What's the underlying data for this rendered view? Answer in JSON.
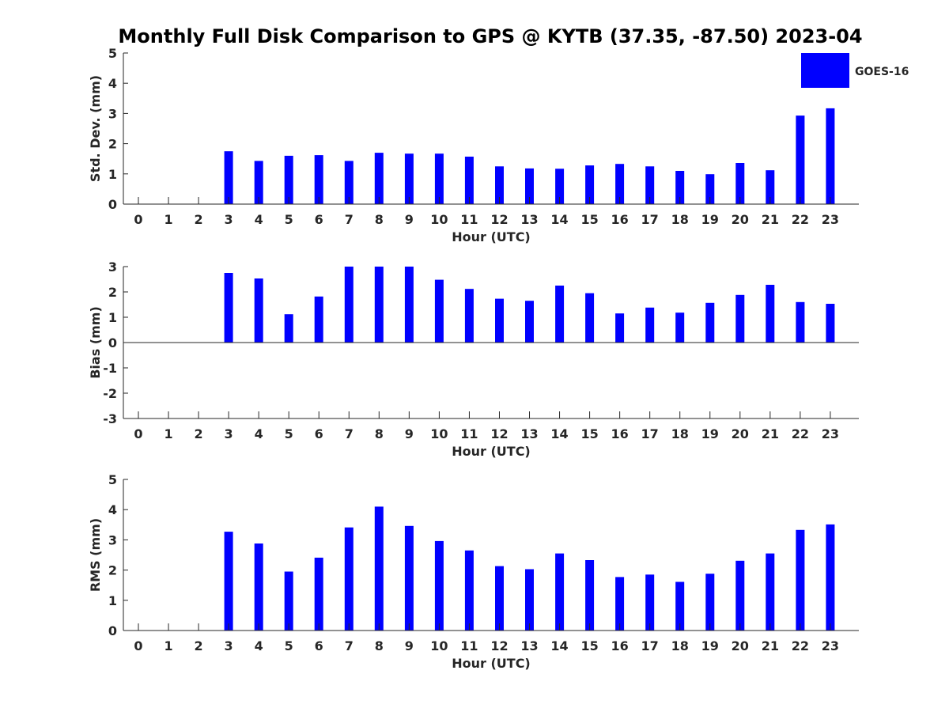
{
  "title": "Monthly Full Disk Comparison to GPS @ KYTB (37.35, -87.50) 2023-04",
  "legend": {
    "label": "GOES-16",
    "placement": "top-right"
  },
  "colors": {
    "bar": "#0000ff",
    "axis": "#262626"
  },
  "chart_data": [
    {
      "type": "bar",
      "categories": [
        "0",
        "1",
        "2",
        "3",
        "4",
        "5",
        "6",
        "7",
        "8",
        "9",
        "10",
        "11",
        "12",
        "13",
        "14",
        "15",
        "16",
        "17",
        "18",
        "19",
        "20",
        "21",
        "22",
        "23"
      ],
      "series": [
        {
          "name": "GOES-16",
          "values": [
            null,
            null,
            null,
            1.75,
            1.43,
            1.6,
            1.62,
            1.43,
            1.7,
            1.67,
            1.67,
            1.57,
            1.25,
            1.18,
            1.17,
            1.28,
            1.33,
            1.25,
            1.1,
            0.99,
            1.36,
            1.12,
            2.93,
            3.17
          ]
        }
      ],
      "xlabel": "Hour (UTC)",
      "ylabel": "Std. Dev. (mm)",
      "ylim": [
        0,
        5
      ],
      "yticks": [
        "0",
        "1",
        "2",
        "3",
        "4",
        "5"
      ],
      "grid": false
    },
    {
      "type": "bar",
      "categories": [
        "0",
        "1",
        "2",
        "3",
        "4",
        "5",
        "6",
        "7",
        "8",
        "9",
        "10",
        "11",
        "12",
        "13",
        "14",
        "15",
        "16",
        "17",
        "18",
        "19",
        "20",
        "21",
        "22",
        "23"
      ],
      "series": [
        {
          "name": "GOES-16",
          "values": [
            null,
            null,
            null,
            2.75,
            2.53,
            1.12,
            1.82,
            3.0,
            3.0,
            3.0,
            2.48,
            2.12,
            1.73,
            1.65,
            2.25,
            1.95,
            1.15,
            1.38,
            1.18,
            1.57,
            1.88,
            2.28,
            1.6,
            1.53
          ]
        }
      ],
      "xlabel": "Hour (UTC)",
      "ylabel": "Bias (mm)",
      "ylim": [
        -3,
        3
      ],
      "yticks": [
        "-3",
        "-2",
        "-1",
        "0",
        "1",
        "2",
        "3"
      ],
      "grid": false
    },
    {
      "type": "bar",
      "categories": [
        "0",
        "1",
        "2",
        "3",
        "4",
        "5",
        "6",
        "7",
        "8",
        "9",
        "10",
        "11",
        "12",
        "13",
        "14",
        "15",
        "16",
        "17",
        "18",
        "19",
        "20",
        "21",
        "22",
        "23"
      ],
      "series": [
        {
          "name": "GOES-16",
          "values": [
            null,
            null,
            null,
            3.27,
            2.88,
            1.95,
            2.41,
            3.41,
            4.1,
            3.46,
            2.96,
            2.65,
            2.13,
            2.03,
            2.55,
            2.33,
            1.77,
            1.85,
            1.61,
            1.88,
            2.31,
            2.55,
            3.33,
            3.51
          ]
        }
      ],
      "xlabel": "Hour (UTC)",
      "ylabel": "RMS (mm)",
      "ylim": [
        0,
        5
      ],
      "yticks": [
        "0",
        "1",
        "2",
        "3",
        "4",
        "5"
      ],
      "grid": false
    }
  ]
}
